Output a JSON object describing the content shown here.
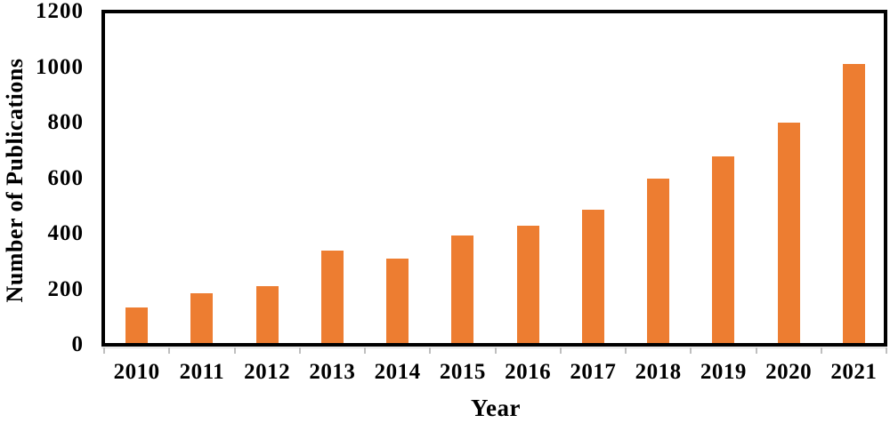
{
  "chart_data": {
    "type": "bar",
    "title": "",
    "xlabel": "Year",
    "ylabel": "Number of Publications",
    "categories": [
      "2010",
      "2011",
      "2012",
      "2013",
      "2014",
      "2015",
      "2016",
      "2017",
      "2018",
      "2019",
      "2020",
      "2021"
    ],
    "values": [
      135,
      185,
      210,
      340,
      310,
      395,
      430,
      485,
      600,
      680,
      800,
      1010
    ],
    "ylim": [
      0,
      1200
    ],
    "yticks": [
      0,
      200,
      400,
      600,
      800,
      1000,
      1200
    ],
    "grid": false,
    "legend": false,
    "bar_color": "#ED7D31",
    "axis_color": "#000000",
    "tick_color": "#BFBFBF",
    "baseline_color": "#D9D9D9"
  }
}
